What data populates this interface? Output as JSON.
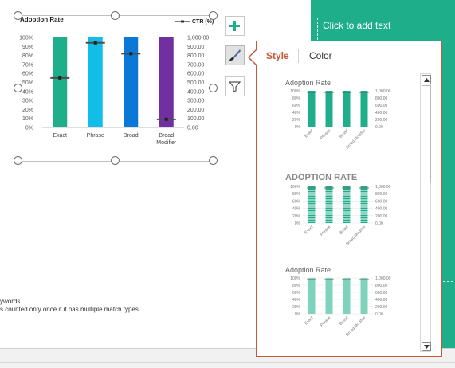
{
  "slide": {
    "placeholder_text": "Click to add text"
  },
  "footnotes": {
    "line1": "ywords.",
    "line2": "s counted only once if it has multiple match types.",
    "line3": "."
  },
  "chart_data": {
    "type": "bar",
    "title": "Adoption Rate",
    "legend": "CTR (%)",
    "categories": [
      "Exact",
      "Phrase",
      "Broad",
      "Broad Modifier"
    ],
    "series": [
      {
        "name": "Adoption Rate",
        "values": [
          100,
          100,
          100,
          100
        ],
        "colors": [
          "#1fae8a",
          "#12bde8",
          "#0a78d7",
          "#7030a0"
        ]
      },
      {
        "name": "CTR (%)",
        "values": [
          550,
          940,
          820,
          90
        ]
      }
    ],
    "y_ticks": [
      "0%",
      "10%",
      "20%",
      "30%",
      "40%",
      "50%",
      "60%",
      "70%",
      "80%",
      "90%",
      "100%"
    ],
    "y2_ticks": [
      "0.00",
      "100.00",
      "200.00",
      "300.00",
      "400.00",
      "500.00",
      "600.00",
      "700.00",
      "800.00",
      "900.00",
      "1,000.00"
    ],
    "ylim": [
      0,
      100
    ],
    "y2lim": [
      0,
      1000
    ]
  },
  "popup": {
    "tab_style": "Style",
    "tab_color": "Color"
  },
  "thumbnails": [
    {
      "title": "Adoption Rate",
      "color": "#1fae8a",
      "variant": "solid",
      "y_ticks": [
        "0%",
        "20%",
        "40%",
        "60%",
        "80%",
        "100%"
      ],
      "y2_ticks": [
        "0.00",
        "200.00",
        "400.00",
        "600.00",
        "800.00",
        "1,000.00"
      ],
      "categories": [
        "Exact",
        "Phrase",
        "Broad",
        "Broad Modifier"
      ]
    },
    {
      "title": "ADOPTION RATE",
      "color": "#1fae8a",
      "variant": "striped",
      "y_ticks": [
        "0%",
        "20%",
        "40%",
        "60%",
        "80%",
        "100%"
      ],
      "y2_ticks": [
        "0.00",
        "200.00",
        "400.00",
        "600.00",
        "800.00",
        "1,000.00"
      ],
      "categories": [
        "Exact",
        "Phrase",
        "Broad",
        "Broad Modifier"
      ]
    },
    {
      "title": "Adoption Rate",
      "color": "#7fd3bd",
      "variant": "light",
      "y_ticks": [
        "0%",
        "20%",
        "40%",
        "60%",
        "80%",
        "100%"
      ],
      "y2_ticks": [
        "0.00",
        "200.00",
        "400.00",
        "600.00",
        "800.00",
        "1,000.00"
      ],
      "categories": [
        "Exact",
        "Phrase",
        "Broad",
        "Broad Modifier"
      ]
    }
  ],
  "icons": {
    "add": "plus-icon",
    "style": "brush-icon",
    "filter": "funnel-icon"
  }
}
